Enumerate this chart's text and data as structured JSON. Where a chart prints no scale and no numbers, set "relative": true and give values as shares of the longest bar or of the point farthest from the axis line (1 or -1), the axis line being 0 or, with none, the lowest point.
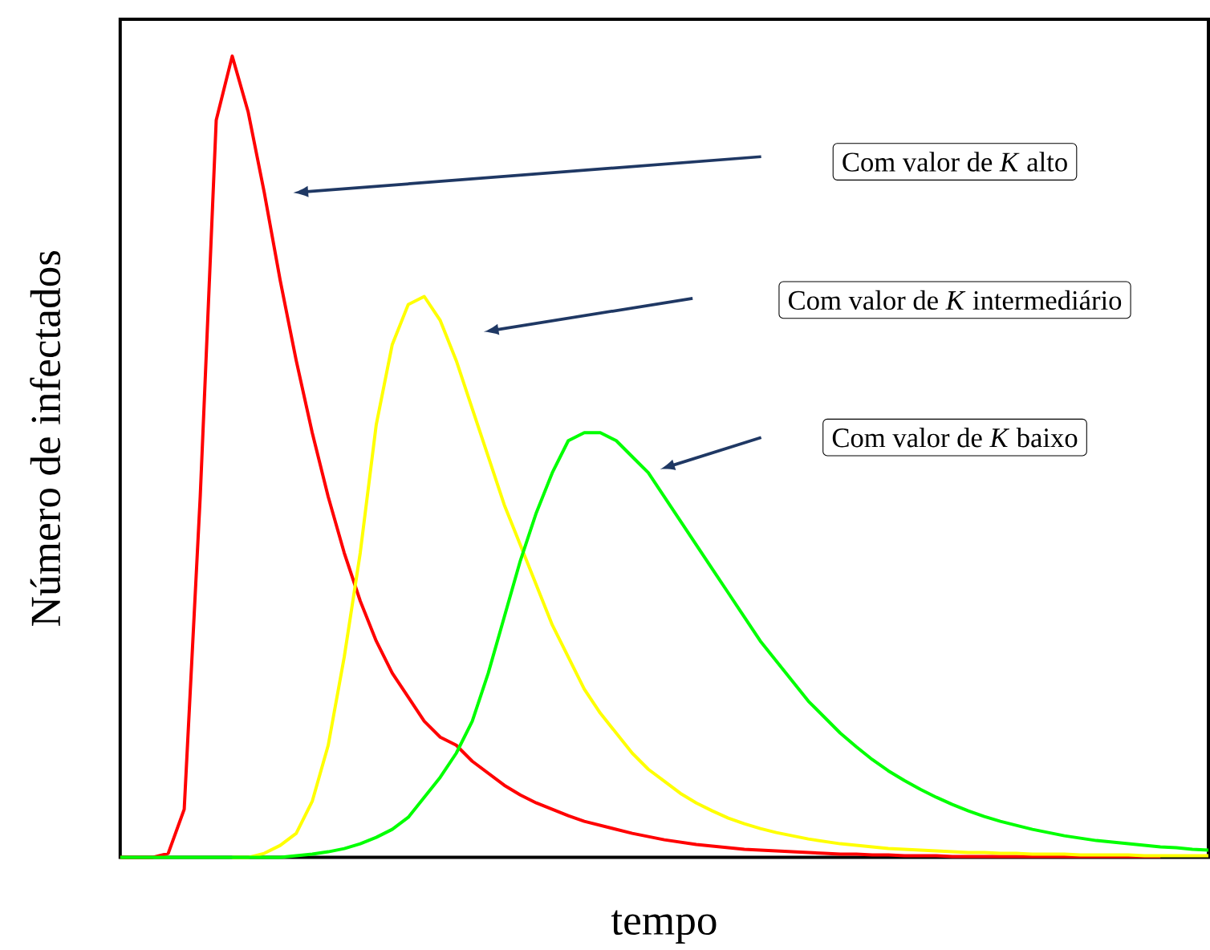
{
  "chart_data": {
    "type": "line",
    "relative": true,
    "tick_labels": false,
    "xlabel": "tempo",
    "ylabel": "Número de infectados",
    "categories": [
      null,
      null,
      null,
      null,
      null,
      null,
      null,
      null,
      null,
      null,
      null,
      null,
      null,
      null,
      null,
      null,
      null,
      null,
      null,
      null,
      null,
      null,
      null,
      null,
      null,
      null,
      null,
      null,
      null,
      null,
      null,
      null,
      null,
      null,
      null,
      null,
      null,
      null,
      null,
      null,
      null,
      null,
      null,
      null,
      null,
      null,
      null,
      null,
      null,
      null,
      null,
      null,
      null,
      null,
      null,
      null,
      null,
      null,
      null,
      null,
      null,
      null,
      null,
      null,
      null,
      null,
      null,
      null,
      null
    ],
    "series": [
      {
        "color": "#ff0000",
        "values": [
          0,
          0,
          0,
          0.005,
          0.06,
          0.45,
          0.92,
          1,
          0.93,
          0.83,
          0.72,
          0.62,
          0.53,
          0.45,
          0.38,
          0.32,
          0.27,
          0.23,
          0.2,
          0.17,
          0.15,
          0.14,
          0.12,
          0.105,
          0.09,
          0.078,
          0.068,
          0.06,
          0.052,
          0.045,
          0.04,
          0.035,
          0.03,
          0.026,
          0.022,
          0.019,
          0.016,
          0.014,
          0.012,
          0.01,
          0.009,
          0.008,
          0.007,
          0.006,
          0.005,
          0.004,
          0.004,
          0.003,
          0.003,
          0.002,
          0.002,
          0.002,
          0.001,
          0.001,
          0.001,
          0.001,
          0.001,
          0.001,
          0.001,
          0.001,
          0.001,
          0.001,
          0.001,
          0.001,
          0.001,
          0.001,
          null,
          null,
          null
        ]
      },
      {
        "color": "#ffff00",
        "values": [
          null,
          null,
          null,
          null,
          null,
          null,
          null,
          0,
          0,
          0.005,
          0.015,
          0.03,
          0.07,
          0.14,
          0.25,
          0.38,
          0.54,
          0.64,
          0.69,
          0.7,
          0.67,
          0.62,
          0.56,
          0.5,
          0.44,
          0.39,
          0.34,
          0.29,
          0.25,
          0.21,
          0.18,
          0.155,
          0.13,
          0.11,
          0.095,
          0.08,
          0.068,
          0.058,
          0.049,
          0.042,
          0.036,
          0.031,
          0.027,
          0.023,
          0.02,
          0.017,
          0.015,
          0.013,
          0.011,
          0.01,
          0.009,
          0.008,
          0.007,
          0.006,
          0.006,
          0.005,
          0.005,
          0.004,
          0.004,
          0.004,
          0.003,
          0.003,
          0.003,
          0.003,
          0.002,
          0.002,
          0.002,
          0.002,
          0.002
        ]
      },
      {
        "color": "#00ff00",
        "values": [
          0,
          0,
          0,
          0,
          0,
          0,
          0,
          0,
          0,
          0,
          0,
          0.002,
          0.004,
          0.007,
          0.011,
          0.017,
          0.025,
          0.035,
          0.05,
          0.075,
          0.1,
          0.13,
          0.17,
          0.23,
          0.3,
          0.37,
          0.43,
          0.48,
          0.52,
          0.53,
          0.53,
          0.52,
          0.5,
          0.48,
          0.45,
          0.42,
          0.39,
          0.36,
          0.33,
          0.3,
          0.27,
          0.245,
          0.22,
          0.195,
          0.175,
          0.155,
          0.138,
          0.122,
          0.108,
          0.096,
          0.085,
          0.075,
          0.066,
          0.058,
          0.051,
          0.045,
          0.04,
          0.035,
          0.031,
          0.027,
          0.024,
          0.021,
          0.019,
          0.017,
          0.015,
          0.013,
          0.012,
          0.01,
          0.009
        ]
      }
    ],
    "annotations": [
      "Com valor de *K* alto",
      "Com valor de *K* intermediário",
      "Com valor de *K* baixo"
    ]
  }
}
